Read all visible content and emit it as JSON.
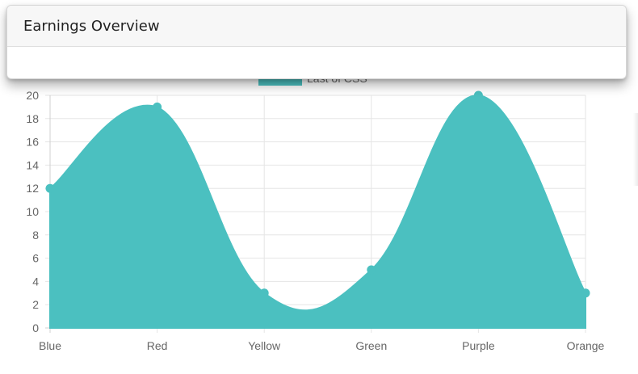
{
  "card": {
    "title": "Earnings Overview"
  },
  "chart_data": {
    "type": "area",
    "categories": [
      "Blue",
      "Red",
      "Yellow",
      "Green",
      "Purple",
      "Orange"
    ],
    "series": [
      {
        "name": "Last of CSS",
        "values": [
          12,
          19,
          3,
          5,
          20,
          3
        ]
      }
    ],
    "ylim": [
      0,
      20
    ],
    "y_ticks": [
      0,
      2,
      4,
      6,
      8,
      10,
      12,
      14,
      16,
      18,
      20
    ],
    "grid": true,
    "legend": "top",
    "colors": {
      "fill": "#4bc0c0",
      "grid": "#e5e5e5",
      "axis": "#d0d0d0",
      "tick_text": "#666666"
    }
  }
}
